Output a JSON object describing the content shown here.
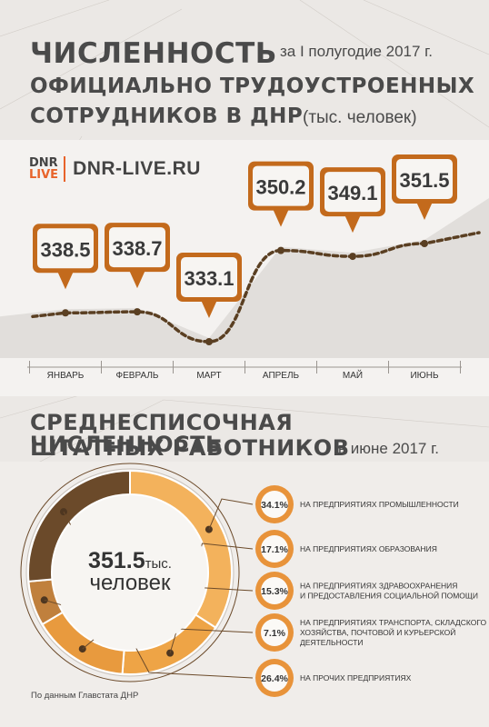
{
  "header": {
    "title_line1": "ЧИСЛЕННОСТЬ",
    "period": "за I полугодие 2017 г.",
    "title_line2": "ОФИЦИАЛЬНО ТРУДОУСТРОЕННЫХ",
    "title_line3": "СОТРУДНИКОВ В ДНР",
    "unit": "(тыс. человек)"
  },
  "logo": {
    "mark_top": "DNR",
    "mark_bottom": "LIVE",
    "text": "DNR-LIVE.RU"
  },
  "section2": {
    "title_line1": "СРЕДНЕСПИСОЧНАЯ ЧИСЛЕННОСТЬ",
    "title_line2": "ШТАТНЫХ РАБОТНИКОВ",
    "period": "в июне 2017 г.",
    "center_value": "351.5",
    "center_unit": "тыс.",
    "center_unit2": "человек",
    "source": "По данным Главстата ДНР"
  },
  "colors": {
    "orange": "#e28a2e",
    "light_orange": "#f3b25c",
    "brown": "#6b4a2a",
    "dark_brown": "#4e3620",
    "gray_area": "#d9d5d1"
  },
  "chart_data": [
    {
      "type": "line",
      "x": [
        "ЯНВАРЬ",
        "ФЕВРАЛЬ",
        "МАРТ",
        "АПРЕЛЬ",
        "МАЙ",
        "ИЮНЬ"
      ],
      "series": [
        {
          "values": [
            338.5,
            338.7,
            333.1,
            350.2,
            349.1,
            351.5
          ],
          "labels": [
            "338.5",
            "338.7",
            "333.1",
            "350.2",
            "349.1",
            "351.5"
          ]
        }
      ]
    },
    {
      "type": "pie",
      "slices": [
        {
          "label": "НА ПРЕДПРИЯТИЯХ ПРОМЫШЛЕННОСТИ",
          "value": 34.1,
          "text": "34.1%"
        },
        {
          "label": "НА ПРЕДПРИЯТИЯХ ОБРАЗОВАНИЯ",
          "value": 17.1,
          "text": "17.1%"
        },
        {
          "label": "НА ПРЕДПРИЯТИЯХ ЗДРАВООХРАНЕНИЯ И ПРЕДОСТАВЛЕНИЯ СОЦИАЛЬНОЙ ПОМОЩИ",
          "value": 15.3,
          "text": "15.3%"
        },
        {
          "label": "НА ПРЕДПРИЯТИЯХ ТРАНСПОРТА, СКЛАДСКОГО ХОЗЯЙСТВА, ПОЧТОВОЙ И КУРЬЕРСКОЙ ДЕЯТЕЛЬНОСТИ",
          "value": 7.1,
          "text": "7.1%"
        },
        {
          "label": "НА ПРОЧИХ ПРЕДПРИЯТИЯХ",
          "value": 26.4,
          "text": "26.4%"
        }
      ]
    }
  ]
}
